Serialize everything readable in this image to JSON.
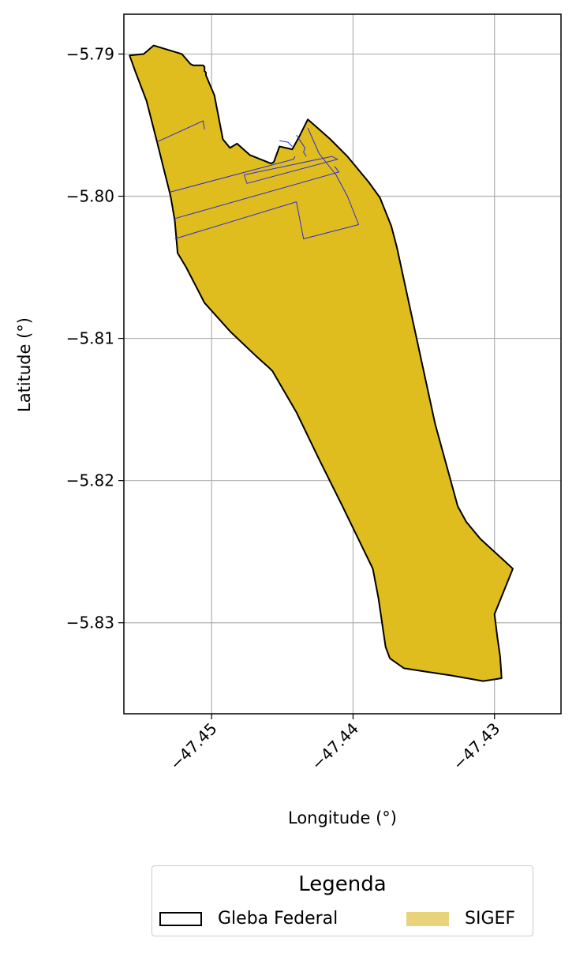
{
  "chart_data": {
    "type": "map",
    "xlabel": "Longitude (°)",
    "ylabel": "Latitude (°)",
    "xlim": [
      -47.4562,
      -47.4253
    ],
    "ylim": [
      -5.8364,
      -5.7872
    ],
    "xticks": [
      -47.45,
      -47.44,
      -47.43
    ],
    "xtick_labels": [
      "−47.45",
      "−47.44",
      "−47.43"
    ],
    "yticks": [
      -5.79,
      -5.8,
      -5.81,
      -5.82,
      -5.83
    ],
    "ytick_labels": [
      "−5.79",
      "−5.80",
      "−5.81",
      "−5.82",
      "−5.83"
    ],
    "grid": true,
    "colors": {
      "gleba_edge": "#000000",
      "sigef_fill": "#dfbd1f",
      "sigef_legend": "#e8d37a",
      "parcel_edge": "#2b2bd6",
      "grid": "#b0b0b0"
    },
    "gleba_polygon": [
      [
        -47.4548,
        -5.79
      ],
      [
        -47.4541,
        -5.7894
      ],
      [
        -47.4521,
        -5.79
      ],
      [
        -47.4515,
        -5.7907
      ],
      [
        -47.4513,
        -5.7908
      ],
      [
        -47.4506,
        -5.7908
      ],
      [
        -47.4505,
        -5.7909
      ],
      [
        -47.4505,
        -5.7912
      ],
      [
        -47.4504,
        -5.7913
      ],
      [
        -47.4504,
        -5.7915
      ],
      [
        -47.4498,
        -5.7929
      ],
      [
        -47.4492,
        -5.796
      ],
      [
        -47.4487,
        -5.7966
      ],
      [
        -47.4482,
        -5.7963
      ],
      [
        -47.4473,
        -5.7971
      ],
      [
        -47.4458,
        -5.7977
      ],
      [
        -47.4456,
        -5.7976
      ],
      [
        -47.4452,
        -5.7965
      ],
      [
        -47.4443,
        -5.7967
      ],
      [
        -47.4438,
        -5.7958
      ],
      [
        -47.4432,
        -5.7946
      ],
      [
        -47.4425,
        -5.7952
      ],
      [
        -47.4416,
        -5.796
      ],
      [
        -47.4404,
        -5.7972
      ],
      [
        -47.4389,
        -5.799
      ],
      [
        -47.4381,
        -5.8001
      ],
      [
        -47.4373,
        -5.8021
      ],
      [
        -47.4369,
        -5.8036
      ],
      [
        -47.4342,
        -5.816
      ],
      [
        -47.4326,
        -5.8218
      ],
      [
        -47.432,
        -5.8229
      ],
      [
        -47.431,
        -5.8241
      ],
      [
        -47.4287,
        -5.8262
      ],
      [
        -47.43,
        -5.8294
      ],
      [
        -47.4298,
        -5.831
      ],
      [
        -47.4296,
        -5.8324
      ],
      [
        -47.4295,
        -5.8339
      ],
      [
        -47.4308,
        -5.8341
      ],
      [
        -47.4331,
        -5.8337
      ],
      [
        -47.4351,
        -5.8334
      ],
      [
        -47.4364,
        -5.8332
      ],
      [
        -47.4374,
        -5.8325
      ],
      [
        -47.4377,
        -5.8317
      ],
      [
        -47.4382,
        -5.8283
      ],
      [
        -47.4386,
        -5.8262
      ],
      [
        -47.4407,
        -5.8219
      ],
      [
        -47.4424,
        -5.8185
      ],
      [
        -47.444,
        -5.8152
      ],
      [
        -47.4457,
        -5.8123
      ],
      [
        -47.4459,
        -5.8121
      ],
      [
        -47.4469,
        -5.8112
      ],
      [
        -47.4487,
        -5.8095
      ],
      [
        -47.4505,
        -5.8075
      ],
      [
        -47.4518,
        -5.805
      ],
      [
        -47.4524,
        -5.804
      ],
      [
        -47.4526,
        -5.8017
      ],
      [
        -47.4529,
        -5.8
      ],
      [
        -47.4539,
        -5.796
      ],
      [
        -47.4546,
        -5.7933
      ],
      [
        -47.4554,
        -5.7912
      ],
      [
        -47.4558,
        -5.7901
      ]
    ],
    "parcels": [
      [
        [
          -47.4539,
          -5.7962
        ],
        [
          -47.4506,
          -5.7947
        ],
        [
          -47.4505,
          -5.7953
        ]
      ],
      [
        [
          -47.4529,
          -5.7997
        ],
        [
          -47.4442,
          -5.7974
        ],
        [
          -47.4441,
          -5.7972
        ]
      ],
      [
        [
          -47.4452,
          -5.7961
        ],
        [
          -47.4446,
          -5.7962
        ],
        [
          -47.4443,
          -5.7965
        ]
      ],
      [
        [
          -47.444,
          -5.7957
        ],
        [
          -47.4434,
          -5.7966
        ],
        [
          -47.4435,
          -5.7969
        ],
        [
          -47.4433,
          -5.7972
        ]
      ],
      [
        [
          -47.4477,
          -5.7985
        ],
        [
          -47.4415,
          -5.7972
        ],
        [
          -47.4411,
          -5.7974
        ],
        [
          -47.4475,
          -5.7991
        ],
        [
          -47.4477,
          -5.7985
        ]
      ],
      [
        [
          -47.4527,
          -5.8016
        ],
        [
          -47.441,
          -5.7983
        ],
        [
          -47.4413,
          -5.7979
        ]
      ],
      [
        [
          -47.4526,
          -5.803
        ],
        [
          -47.444,
          -5.8004
        ],
        [
          -47.4435,
          -5.803
        ],
        [
          -47.4396,
          -5.802
        ]
      ],
      [
        [
          -47.4396,
          -5.802
        ],
        [
          -47.4404,
          -5.8
        ],
        [
          -47.4412,
          -5.7985
        ],
        [
          -47.4424,
          -5.797
        ],
        [
          -47.4432,
          -5.7952
        ]
      ]
    ]
  },
  "legend": {
    "title": "Legenda",
    "items": [
      {
        "label": "Gleba Federal"
      },
      {
        "label": "SIGEF"
      }
    ]
  }
}
